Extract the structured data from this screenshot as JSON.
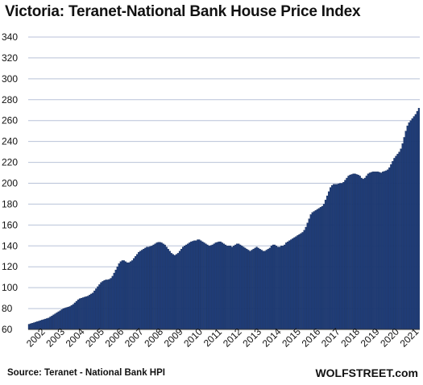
{
  "title": "Victoria: Teranet-National  Bank House Price Index",
  "source": "Source: Teranet - National Bank HPI",
  "brand": "WOLFSTREET.com",
  "colors": {
    "bar": "#1f3d7a",
    "bar_edge": "#0f2550",
    "grid": "#b8c2d8",
    "axis": "#333333"
  },
  "chart_data": {
    "type": "bar",
    "title": "Victoria: Teranet-National  Bank House Price Index",
    "xlabel": "",
    "ylabel": "",
    "ylim": [
      60,
      340
    ],
    "yticks": [
      60,
      80,
      100,
      120,
      140,
      160,
      180,
      200,
      220,
      240,
      260,
      280,
      300,
      320,
      340
    ],
    "xtick_labels": [
      "2002",
      "2003",
      "2004",
      "2005",
      "2006",
      "2007",
      "2008",
      "2009",
      "2010",
      "2011",
      "2012",
      "2013",
      "2014",
      "2015",
      "2016",
      "2017",
      "2018",
      "2019",
      "2020",
      "2021"
    ],
    "grid": true,
    "start": "2002-01",
    "frequency": "monthly",
    "values": [
      65,
      65.5,
      66,
      66.5,
      67,
      67.5,
      68,
      68.5,
      69,
      69.5,
      70,
      70.5,
      71,
      72,
      73,
      74,
      75,
      76,
      77,
      78,
      79,
      80,
      80.5,
      81,
      81.5,
      82,
      83,
      84,
      85.5,
      87,
      88.5,
      89.5,
      90,
      90.5,
      91,
      91.5,
      92,
      93,
      94,
      95,
      97,
      99,
      101,
      103,
      105,
      106,
      107,
      107.5,
      107.5,
      108,
      109,
      111,
      114,
      117,
      120,
      123,
      125,
      126,
      126,
      125,
      124,
      124,
      125,
      126,
      128,
      130,
      132,
      134,
      135,
      136,
      137,
      138,
      139,
      139,
      139.5,
      140,
      141,
      142,
      143,
      143.5,
      143.5,
      143,
      142,
      141,
      139,
      137,
      135,
      133,
      132,
      131,
      132,
      133,
      135,
      137,
      139,
      140,
      141,
      142,
      143,
      144,
      144.5,
      145,
      145,
      146,
      146,
      145,
      144,
      143,
      142,
      141,
      140,
      140.5,
      141,
      142,
      143,
      143.5,
      144,
      144,
      143,
      142,
      141,
      140,
      140,
      140,
      139,
      140,
      141,
      142,
      142,
      141,
      140,
      139,
      138,
      137,
      136,
      135,
      136,
      137,
      138,
      139,
      138,
      137,
      136,
      135,
      135,
      136,
      137,
      138,
      140,
      141,
      141,
      140,
      139,
      139,
      140,
      140,
      141,
      143,
      144,
      145,
      146,
      147,
      148,
      149,
      150,
      151,
      152,
      153,
      155,
      158,
      162,
      166,
      170,
      172,
      173,
      174,
      175,
      176,
      177,
      178,
      180,
      184,
      188,
      192,
      196,
      198,
      199,
      199,
      199,
      199.5,
      200,
      200,
      201,
      203,
      205,
      207,
      208,
      208.5,
      209,
      209,
      208.5,
      208,
      207,
      205,
      204,
      205,
      207,
      209,
      210,
      210.5,
      211,
      211,
      211,
      211,
      210.5,
      210,
      211,
      211.5,
      212,
      213,
      215,
      218,
      221,
      224,
      226,
      228,
      230,
      233,
      238,
      244,
      250,
      255,
      258,
      260,
      262,
      264,
      266,
      269,
      272
    ]
  }
}
